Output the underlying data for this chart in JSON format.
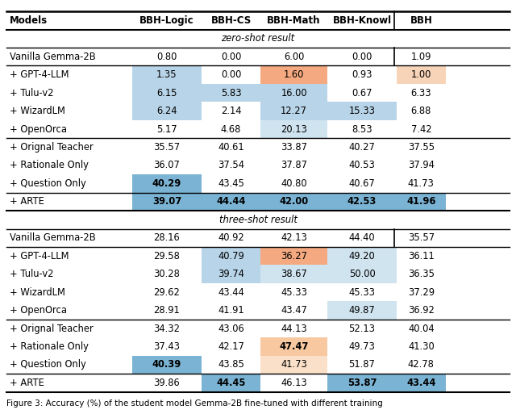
{
  "columns": [
    "Models",
    "BBH-Logic",
    "BBH-CS",
    "BBH-Math",
    "BBH-Knowl",
    "BBH"
  ],
  "sections": [
    {
      "type": "section_header",
      "text": "zero-shot result"
    },
    {
      "type": "baseline",
      "row": [
        "Vanilla Gemma-2B",
        "0.80",
        "0.00",
        "6.00",
        "0.00",
        "1.09"
      ],
      "bold": [],
      "cell_colors": [
        null,
        null,
        null,
        null,
        null,
        null
      ],
      "bbh_separator": true
    },
    {
      "type": "group",
      "rows": [
        {
          "row": [
            "+ GPT-4-LLM",
            "1.35",
            "0.00",
            "1.60",
            "0.93",
            "1.00"
          ],
          "bold": [],
          "cell_colors": [
            null,
            "light_blue",
            null,
            "light_orange",
            null,
            "very_light_orange"
          ]
        },
        {
          "row": [
            "+ Tulu-v2",
            "6.15",
            "5.83",
            "16.00",
            "0.67",
            "6.33"
          ],
          "bold": [],
          "cell_colors": [
            null,
            "light_blue",
            "light_blue",
            "light_blue",
            null,
            null
          ]
        },
        {
          "row": [
            "+ WizardLM",
            "6.24",
            "2.14",
            "12.27",
            "15.33",
            "6.88"
          ],
          "bold": [],
          "cell_colors": [
            null,
            "light_blue",
            null,
            "light_blue",
            "light_blue",
            null
          ]
        },
        {
          "row": [
            "+ OpenOrca",
            "5.17",
            "4.68",
            "20.13",
            "8.53",
            "7.42"
          ],
          "bold": [],
          "cell_colors": [
            null,
            null,
            null,
            "light_blue2",
            null,
            null
          ]
        }
      ]
    },
    {
      "type": "group",
      "rows": [
        {
          "row": [
            "+ Orignal Teacher",
            "35.57",
            "40.61",
            "33.87",
            "40.27",
            "37.55"
          ],
          "bold": [],
          "cell_colors": [
            null,
            null,
            null,
            null,
            null,
            null
          ]
        },
        {
          "row": [
            "+ Rationale Only",
            "36.07",
            "37.54",
            "37.87",
            "40.53",
            "37.94"
          ],
          "bold": [],
          "cell_colors": [
            null,
            null,
            null,
            null,
            null,
            null
          ]
        },
        {
          "row": [
            "+ Question Only",
            "40.29",
            "43.45",
            "40.80",
            "40.67",
            "41.73"
          ],
          "bold": [
            1
          ],
          "cell_colors": [
            null,
            "medium_blue",
            null,
            null,
            null,
            null
          ]
        }
      ]
    },
    {
      "type": "arte",
      "row": [
        "+ ARTE",
        "39.07",
        "44.44",
        "42.00",
        "42.53",
        "41.96"
      ],
      "bold": [
        1,
        2,
        3,
        4,
        5
      ],
      "cell_colors": [
        null,
        "medium_blue",
        "medium_blue",
        "medium_blue",
        "medium_blue",
        "medium_blue"
      ]
    },
    {
      "type": "section_header",
      "text": "three-shot result"
    },
    {
      "type": "baseline",
      "row": [
        "Vanilla Gemma-2B",
        "28.16",
        "40.92",
        "42.13",
        "44.40",
        "35.57"
      ],
      "bold": [],
      "cell_colors": [
        null,
        null,
        null,
        null,
        null,
        null
      ],
      "bbh_separator": true
    },
    {
      "type": "group",
      "rows": [
        {
          "row": [
            "+ GPT-4-LLM",
            "29.58",
            "40.79",
            "36.27",
            "49.20",
            "36.11"
          ],
          "bold": [],
          "cell_colors": [
            null,
            null,
            "light_blue",
            "light_orange",
            "light_blue2",
            null
          ]
        },
        {
          "row": [
            "+ Tulu-v2",
            "30.28",
            "39.74",
            "38.67",
            "50.00",
            "36.35"
          ],
          "bold": [],
          "cell_colors": [
            null,
            null,
            "light_blue",
            "light_blue2",
            "light_blue2",
            null
          ]
        },
        {
          "row": [
            "+ WizardLM",
            "29.62",
            "43.44",
            "45.33",
            "45.33",
            "37.29"
          ],
          "bold": [],
          "cell_colors": [
            null,
            null,
            null,
            null,
            null,
            null
          ]
        },
        {
          "row": [
            "+ OpenOrca",
            "28.91",
            "41.91",
            "43.47",
            "49.87",
            "36.92"
          ],
          "bold": [],
          "cell_colors": [
            null,
            null,
            null,
            null,
            "light_blue2",
            null
          ]
        }
      ]
    },
    {
      "type": "group",
      "rows": [
        {
          "row": [
            "+ Orignal Teacher",
            "34.32",
            "43.06",
            "44.13",
            "52.13",
            "40.04"
          ],
          "bold": [],
          "cell_colors": [
            null,
            null,
            null,
            null,
            null,
            null
          ]
        },
        {
          "row": [
            "+ Rationale Only",
            "37.43",
            "42.17",
            "47.47",
            "49.73",
            "41.30"
          ],
          "bold": [
            3
          ],
          "cell_colors": [
            null,
            null,
            null,
            "light_orange2",
            null,
            null
          ]
        },
        {
          "row": [
            "+ Question Only",
            "40.39",
            "43.85",
            "41.73",
            "51.87",
            "42.78"
          ],
          "bold": [
            1
          ],
          "cell_colors": [
            null,
            "medium_blue",
            null,
            "very_light_orange2",
            null,
            null
          ]
        }
      ]
    },
    {
      "type": "arte",
      "row": [
        "+ ARTE",
        "39.86",
        "44.45",
        "46.13",
        "53.87",
        "43.44"
      ],
      "bold": [
        2,
        4,
        5
      ],
      "cell_colors": [
        null,
        null,
        "medium_blue",
        null,
        "medium_blue",
        "medium_blue"
      ]
    }
  ],
  "color_map": {
    "light_blue": "#b8d4e8",
    "light_blue2": "#d0e4f0",
    "medium_blue": "#7ab3d3",
    "light_orange": "#f4a980",
    "very_light_orange": "#f7d4b8",
    "light_orange2": "#f8c8a0",
    "very_light_orange2": "#fae0c8"
  },
  "figure_width": 6.4,
  "figure_height": 5.13,
  "caption": "Figure 3: Accuracy (%) of the student model Gemma-2B fine-tuned with different training"
}
